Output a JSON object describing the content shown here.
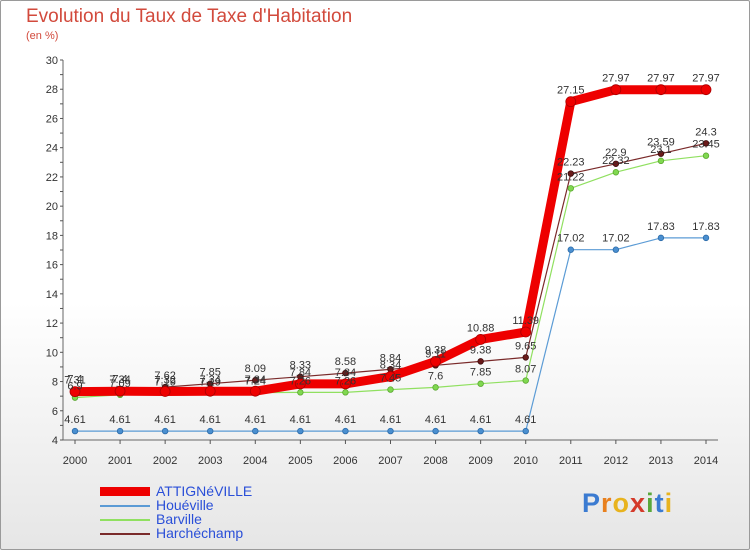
{
  "header": {
    "title": "Evolution du Taux de Taxe d'Habitation",
    "subtitle": "(en %)"
  },
  "logo": {
    "letters": [
      {
        "ch": "P",
        "color": "#3b7bd1"
      },
      {
        "ch": "r",
        "color": "#e8801e"
      },
      {
        "ch": "o",
        "color": "#e8b31e"
      },
      {
        "ch": "x",
        "color": "#d43a2a"
      },
      {
        "ch": "i",
        "color": "#5aa83a"
      },
      {
        "ch": "t",
        "color": "#3b7bd1"
      },
      {
        "ch": "i",
        "color": "#e8b31e"
      }
    ]
  },
  "chart_data": {
    "type": "line",
    "title": "Evolution du Taux de Taxe d'Habitation",
    "ylabel": "(en %)",
    "xlabel": "",
    "ylim": [
      4,
      30
    ],
    "yticks": [
      4,
      6,
      8,
      10,
      12,
      14,
      16,
      18,
      20,
      22,
      24,
      26,
      28,
      30
    ],
    "grid": false,
    "legend_position": "bottom-left",
    "x": [
      "2000",
      "2001",
      "2002",
      "2003",
      "2004",
      "2005",
      "2006",
      "2007",
      "2008",
      "2009",
      "2010",
      "2011",
      "2012",
      "2013",
      "2014"
    ],
    "series": [
      {
        "name": "ATTIGNéVILLE",
        "color": "#ee0000",
        "values": [
          7.31,
          7.34,
          7.32,
          7.34,
          7.34,
          7.84,
          7.84,
          8.34,
          9.38,
          10.88,
          11.39,
          27.15,
          27.97,
          27.97,
          27.97
        ],
        "labels": [
          "7.31",
          "7.34",
          "7.32",
          "7.34",
          "7.34",
          "7.84",
          "7.84",
          "8.34",
          "9.38",
          "10.88",
          "11.39",
          "27.15",
          "27.97",
          "27.97",
          "27.97"
        ]
      },
      {
        "name": "Houéville",
        "color": "#5b9bd5",
        "values": [
          4.61,
          4.61,
          4.61,
          4.61,
          4.61,
          4.61,
          4.61,
          4.61,
          4.61,
          4.61,
          4.61,
          17.02,
          17.02,
          17.83,
          17.83
        ],
        "labels": [
          "4.61",
          "4.61",
          "4.61",
          "4.61",
          "4.61",
          "4.61",
          "4.61",
          "4.61",
          "4.61",
          "4.61",
          "4.61",
          "17.02",
          "17.02",
          "17.83",
          "17.83"
        ]
      },
      {
        "name": "Barville",
        "color": "#90e060",
        "values": [
          6.9,
          7.09,
          7.19,
          7.19,
          7.24,
          7.26,
          7.26,
          7.45,
          7.6,
          7.85,
          8.07,
          21.22,
          22.32,
          23.1,
          23.45
        ],
        "labels": [
          "6.9",
          "7.09",
          "7.19",
          "7.19",
          "7.24",
          "7.26",
          "7.26",
          "7.45",
          "7.6",
          "7.85",
          "8.07",
          "21.22",
          "22.32",
          "23.1",
          "23.45"
        ]
      },
      {
        "name": "Harchéchamp",
        "color": "#7a2a2a",
        "values": [
          7.4,
          7.4,
          7.62,
          7.85,
          8.09,
          8.33,
          8.58,
          8.84,
          9.11,
          9.38,
          9.65,
          22.23,
          22.9,
          23.59,
          24.3
        ],
        "labels": [
          "7.4",
          "7.4",
          "7.62",
          "7.85",
          "8.09",
          "8.33",
          "8.58",
          "8.84",
          "9.11",
          "9.38",
          "9.65",
          "22.23",
          "22.9",
          "23.59",
          "24.3"
        ]
      }
    ]
  }
}
